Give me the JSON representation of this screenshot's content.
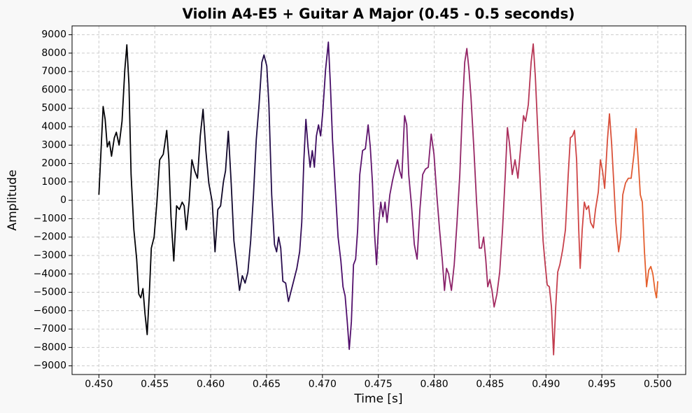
{
  "chart_data": {
    "type": "line",
    "title": "Violin A4-E5 + Guitar A Major (0.45 - 0.5 seconds)",
    "xlabel": "Time [s]",
    "ylabel": "Amplitude",
    "grid": true,
    "colormap": [
      "#000004",
      "#000004",
      "#1c0c43",
      "#4a0c6b",
      "#7c1d6f",
      "#a52c60",
      "#cf4446",
      "#e8642a"
    ],
    "xlim": [
      0.4476,
      0.5025
    ],
    "ylim": [
      -9470,
      9480
    ],
    "xticks": [
      {
        "value": 0.45,
        "label": "0.450"
      },
      0.455,
      {
        "value": 0.46,
        "label": "0.460"
      },
      0.465,
      {
        "value": 0.47,
        "label": "0.470"
      },
      0.475,
      {
        "value": 0.48,
        "label": "0.480"
      },
      0.485,
      {
        "value": 0.49,
        "label": "0.490"
      },
      0.495,
      {
        "value": 0.5,
        "label": "0.500"
      }
    ],
    "yticks": [
      {
        "value": -9000,
        "label": "−9000"
      },
      {
        "value": -8000,
        "label": "−8000"
      },
      {
        "value": -7000,
        "label": "−7000"
      },
      {
        "value": -6000,
        "label": "−6000"
      },
      {
        "value": -5000,
        "label": "−5000"
      },
      {
        "value": -4000,
        "label": "−4000"
      },
      {
        "value": -3000,
        "label": "−3000"
      },
      {
        "value": -2000,
        "label": "−2000"
      },
      {
        "value": -1000,
        "label": "−1000"
      },
      0,
      1000,
      2000,
      3000,
      4000,
      5000,
      6000,
      7000,
      8000,
      9000
    ],
    "x": [
      0.45,
      0.45038,
      0.45056,
      0.45075,
      0.45094,
      0.45113,
      0.45138,
      0.45156,
      0.45181,
      0.45207,
      0.45232,
      0.4525,
      0.45269,
      0.45288,
      0.45313,
      0.45338,
      0.45357,
      0.45375,
      0.45394,
      0.45413,
      0.45432,
      0.45451,
      0.45469,
      0.45494,
      0.45519,
      0.45544,
      0.45576,
      0.45607,
      0.45626,
      0.45645,
      0.4567,
      0.45695,
      0.4572,
      0.45745,
      0.45763,
      0.45782,
      0.45807,
      0.45832,
      0.45857,
      0.45882,
      0.45907,
      0.45932,
      0.45957,
      0.45983,
      0.46014,
      0.46039,
      0.46064,
      0.46089,
      0.46114,
      0.46133,
      0.46158,
      0.46183,
      0.46208,
      0.46233,
      0.46258,
      0.46283,
      0.46308,
      0.46333,
      0.46358,
      0.46383,
      0.46408,
      0.46433,
      0.46458,
      0.46477,
      0.46502,
      0.46521,
      0.46546,
      0.46571,
      0.4659,
      0.46608,
      0.46627,
      0.46646,
      0.46671,
      0.46696,
      0.46721,
      0.46746,
      0.46771,
      0.46796,
      0.46815,
      0.46834,
      0.46852,
      0.46871,
      0.4689,
      0.46909,
      0.46928,
      0.46946,
      0.46965,
      0.46984,
      0.47003,
      0.47028,
      0.47053,
      0.47071,
      0.4709,
      0.47115,
      0.4714,
      0.47165,
      0.47184,
      0.47203,
      0.47222,
      0.4724,
      0.47259,
      0.47278,
      0.47297,
      0.47315,
      0.47334,
      0.47359,
      0.47384,
      0.47409,
      0.47428,
      0.47447,
      0.47466,
      0.47484,
      0.47503,
      0.47522,
      0.47541,
      0.4756,
      0.47578,
      0.47603,
      0.47628,
      0.47647,
      0.47672,
      0.47691,
      0.4771,
      0.47735,
      0.47754,
      0.47772,
      0.47797,
      0.47822,
      0.47847,
      0.47872,
      0.47897,
      0.47922,
      0.47947,
      0.47973,
      0.47998,
      0.48023,
      0.48048,
      0.48073,
      0.48092,
      0.4811,
      0.48129,
      0.48154,
      0.48179,
      0.48204,
      0.48229,
      0.48254,
      0.48273,
      0.48292,
      0.48311,
      0.48329,
      0.48354,
      0.48379,
      0.48404,
      0.48423,
      0.48442,
      0.48461,
      0.48479,
      0.48498,
      0.48517,
      0.48536,
      0.48561,
      0.48586,
      0.48611,
      0.48636,
      0.48655,
      0.48673,
      0.48698,
      0.48723,
      0.48749,
      0.48774,
      0.48799,
      0.48817,
      0.48842,
      0.48867,
      0.48886,
      0.48905,
      0.48924,
      0.48949,
      0.48974,
      0.48993,
      0.49011,
      0.4903,
      0.49049,
      0.49068,
      0.49087,
      0.49105,
      0.49124,
      0.49149,
      0.49174,
      0.49199,
      0.49218,
      0.49237,
      0.49255,
      0.49274,
      0.49293,
      0.49306,
      0.49324,
      0.49343,
      0.49362,
      0.49381,
      0.49399,
      0.49424,
      0.49443,
      0.49468,
      0.49487,
      0.49506,
      0.49525,
      0.4955,
      0.49568,
      0.49587,
      0.49606,
      0.49625,
      0.4965,
      0.49669,
      0.49687,
      0.49712,
      0.49737,
      0.49762,
      0.49787,
      0.49806,
      0.49825,
      0.49844,
      0.49862,
      0.49881,
      0.499,
      0.49919,
      0.49938,
      0.49956,
      0.49975,
      0.49988,
      0.5
    ],
    "values": [
      300,
      5100,
      4400,
      2900,
      3200,
      2400,
      3400,
      3700,
      3000,
      4300,
      7100,
      8450,
      6300,
      1400,
      -1600,
      -3200,
      -5100,
      -5300,
      -4800,
      -6200,
      -7300,
      -5100,
      -2600,
      -2000,
      -100,
      2200,
      2500,
      3800,
      2200,
      -900,
      -3300,
      -300,
      -500,
      -100,
      -300,
      -1600,
      -100,
      2200,
      1600,
      1200,
      3500,
      4950,
      2700,
      950,
      -100,
      -2800,
      -500,
      -300,
      1000,
      1600,
      3750,
      1000,
      -2200,
      -3500,
      -4900,
      -4100,
      -4500,
      -3900,
      -2200,
      300,
      3300,
      5200,
      7500,
      7900,
      7300,
      5200,
      300,
      -2400,
      -2800,
      -2000,
      -2600,
      -4400,
      -4500,
      -5500,
      -4900,
      -4300,
      -3700,
      -2800,
      -1200,
      2200,
      4400,
      2900,
      1800,
      2700,
      1800,
      3500,
      4100,
      3500,
      4800,
      7100,
      8600,
      6300,
      3300,
      650,
      -2000,
      -3300,
      -4700,
      -5200,
      -6600,
      -8100,
      -6600,
      -3500,
      -3200,
      -1600,
      1400,
      2700,
      2800,
      4100,
      2900,
      1000,
      -1800,
      -3500,
      -1300,
      -100,
      -900,
      -100,
      -1200,
      300,
      1100,
      1600,
      2200,
      1600,
      1200,
      4600,
      4100,
      1400,
      -300,
      -2400,
      -3200,
      -500,
      1400,
      1700,
      1800,
      3600,
      2500,
      300,
      -1600,
      -3300,
      -4900,
      -3700,
      -4000,
      -4900,
      -3500,
      -1200,
      1400,
      5200,
      7500,
      8250,
      7100,
      5600,
      2900,
      -100,
      -2600,
      -2600,
      -2000,
      -3200,
      -4700,
      -4300,
      -4900,
      -5800,
      -5100,
      -3900,
      -1600,
      1400,
      3950,
      3100,
      1400,
      2200,
      1200,
      2900,
      4600,
      4300,
      5200,
      7500,
      8500,
      6700,
      4100,
      850,
      -2200,
      -3500,
      -4600,
      -4700,
      -5800,
      -8400,
      -5800,
      -3900,
      -3500,
      -2700,
      -1600,
      1400,
      3400,
      3500,
      3800,
      2200,
      -1600,
      -3700,
      -1600,
      -100,
      -500,
      -300,
      -1200,
      -1500,
      -500,
      450,
      2200,
      1600,
      650,
      3300,
      4700,
      3100,
      1000,
      -1200,
      -2800,
      -2000,
      300,
      950,
      1200,
      1200,
      2500,
      3900,
      2200,
      300,
      -100,
      -2800,
      -4700,
      -3800,
      -3600,
      -4000,
      -4900,
      -5300,
      -4400
    ]
  }
}
